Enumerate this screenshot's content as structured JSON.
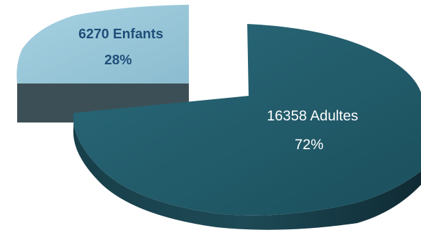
{
  "chart_data": {
    "type": "pie",
    "style": "3d-exploded",
    "slices": [
      {
        "label": "Adultes",
        "value": 16358,
        "percent": "72%",
        "color": "#215968",
        "side_color": "#153e48"
      },
      {
        "label": "Enfants",
        "value": 6270,
        "percent": "28%",
        "color": "#93c5d8",
        "side_color": "#3d4f56"
      }
    ],
    "labels": {
      "adults_line1": "16358 Adultes",
      "adults_line2": "72%",
      "kids_line1": "6270  Enfants",
      "kids_line2": "28%"
    }
  }
}
